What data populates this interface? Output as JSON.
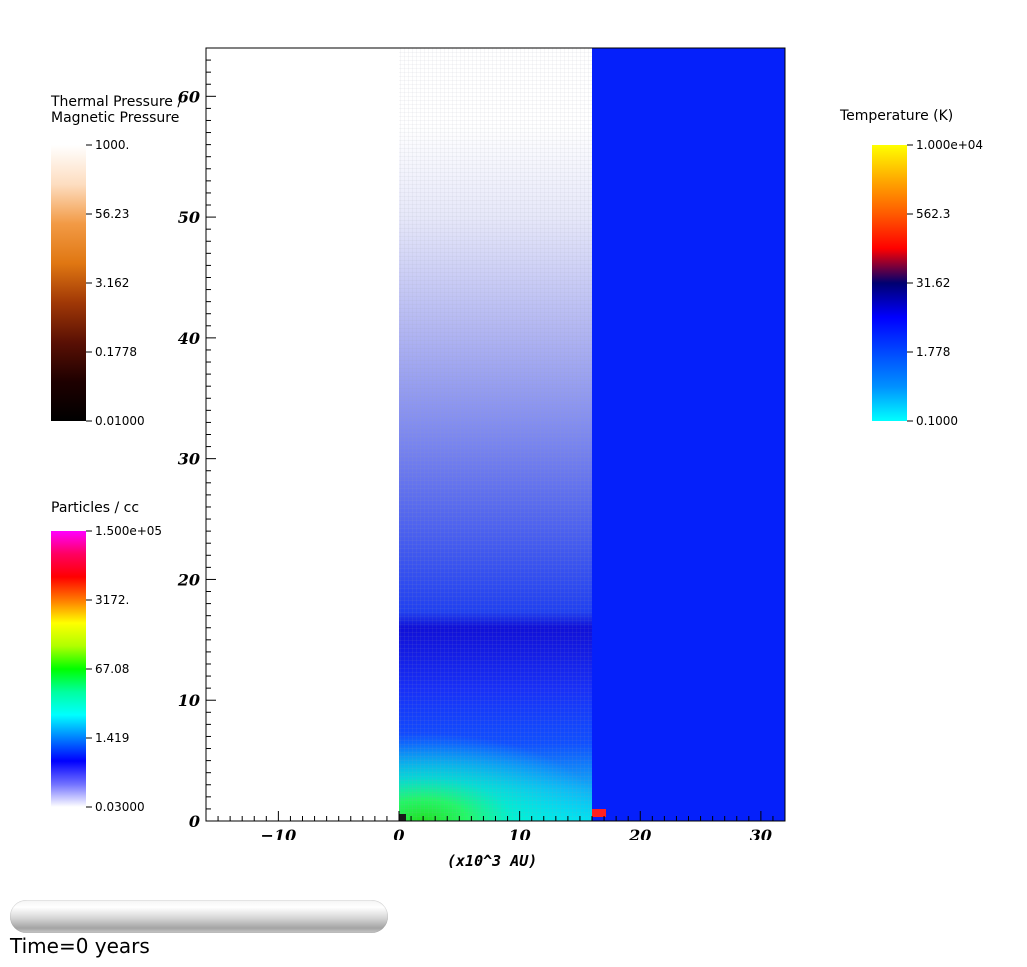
{
  "chart_data": {
    "type": "heatmap",
    "x_axis": {
      "label": "(x10^3 AU)",
      "range": [
        -16,
        32
      ],
      "ticks": [
        -10,
        0,
        10,
        20,
        30
      ],
      "tick_labels": [
        "−10",
        "0",
        "10",
        "20",
        "30"
      ]
    },
    "y_axis": {
      "label": "",
      "range": [
        0,
        64
      ],
      "ticks": [
        0,
        10,
        20,
        30,
        40,
        50,
        60
      ],
      "tick_labels": [
        "0",
        "10",
        "20",
        "30",
        "40",
        "50",
        "60"
      ]
    },
    "panels": [
      {
        "field": "Thermal Pressure / Magnetic Pressure",
        "x_range": [
          -16,
          0
        ],
        "y_range": [
          0,
          64
        ],
        "fill": "#ffffff"
      },
      {
        "field": "Particles / cc",
        "x_range": [
          0,
          16
        ],
        "y_range": [
          0,
          64
        ],
        "grid": true
      },
      {
        "field": "Temperature (K)",
        "x_range": [
          16,
          32
        ],
        "y_range": [
          0,
          64
        ],
        "fill": "#0520fa"
      }
    ],
    "colorbars": [
      {
        "title": [
          "Thermal Pressure /",
          "Magnetic Pressure"
        ],
        "tick_labels": [
          "1000.",
          "56.23",
          "3.162",
          "0.1778",
          "0.01000"
        ],
        "colors": [
          "#ffffff",
          "#fdddc0",
          "#f29a45",
          "#e07712",
          "#a03806",
          "#5a1004",
          "#1e0000",
          "#000000"
        ]
      },
      {
        "title": [
          "Particles / cc"
        ],
        "tick_labels": [
          "1.500e+05",
          "3172.",
          "67.08",
          "1.419",
          "0.03000"
        ],
        "colors": [
          "#ff00ff",
          "#ff0060",
          "#ff0000",
          "#ff7a00",
          "#ffff00",
          "#b0ff00",
          "#00ff00",
          "#00ffa0",
          "#00ffff",
          "#0080ff",
          "#0000ff",
          "#7070ff",
          "#ffffff"
        ]
      },
      {
        "title": [
          "Temperature (K)"
        ],
        "tick_labels": [
          "1.000e+04",
          "562.3",
          "31.62",
          "1.778",
          "0.1000"
        ],
        "colors": [
          "#ffff00",
          "#ffaa00",
          "#ff5a00",
          "#ff0000",
          "#000070",
          "#0000ff",
          "#0048ff",
          "#0090ff",
          "#00ffff"
        ]
      }
    ]
  },
  "status": {
    "time_label": "Time=0 years",
    "progress": 0
  }
}
